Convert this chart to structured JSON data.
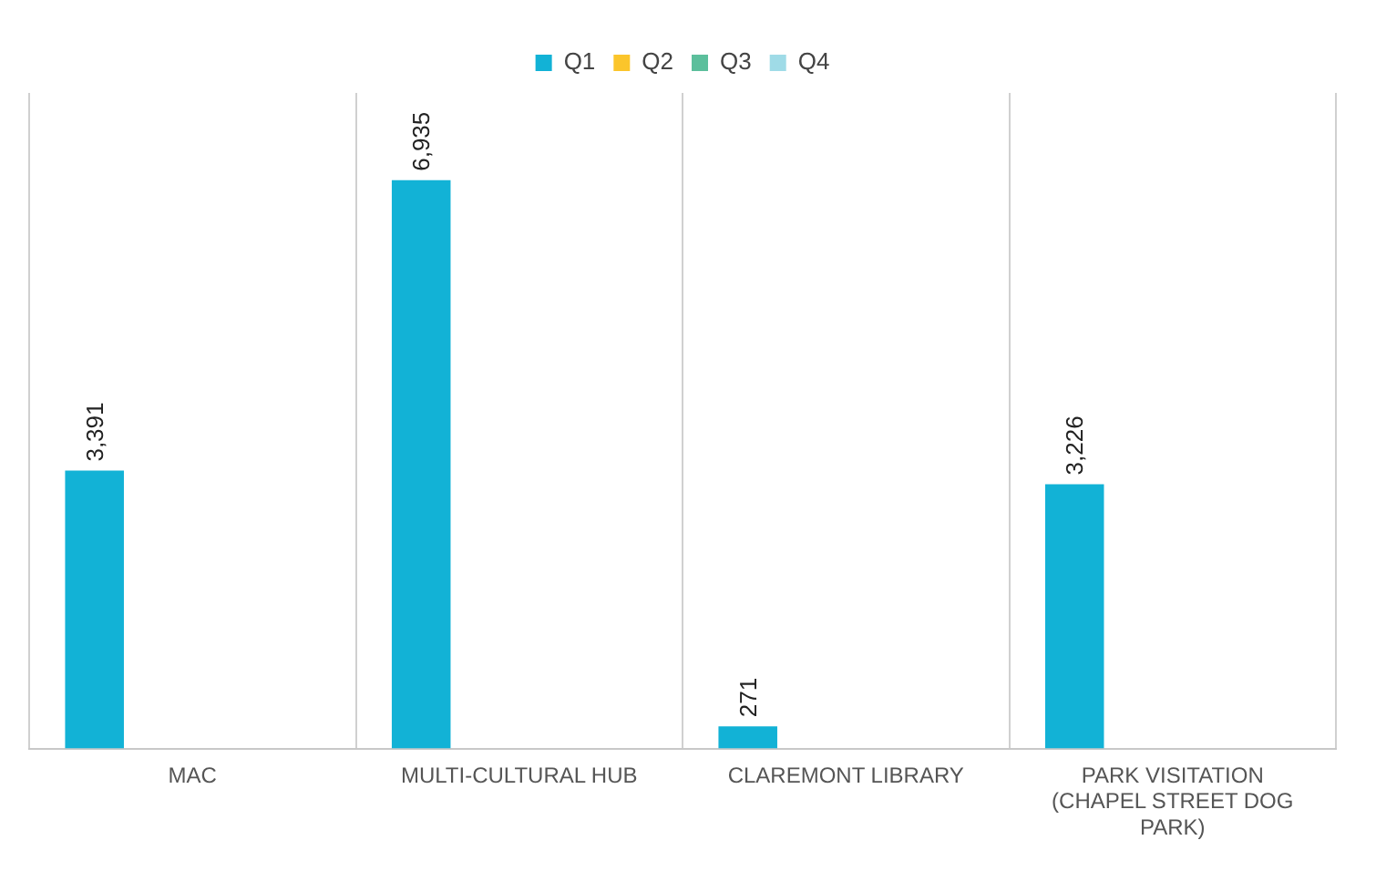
{
  "chart_data": {
    "type": "bar",
    "categories": [
      "MAC",
      "MULTI-CULTURAL HUB",
      "CLAREMONT LIBRARY",
      "PARK VISITATION (CHAPEL STREET DOG PARK)"
    ],
    "series": [
      {
        "name": "Q1",
        "color": "#12b2d6",
        "values": [
          3391,
          6935,
          271,
          3226
        ],
        "value_labels": [
          "3,391",
          "6,935",
          "271",
          "3,226"
        ]
      },
      {
        "name": "Q2",
        "color": "#fbc52b",
        "values": [
          null,
          null,
          null,
          null
        ]
      },
      {
        "name": "Q3",
        "color": "#5cbf9c",
        "values": [
          null,
          null,
          null,
          null
        ]
      },
      {
        "name": "Q4",
        "color": "#9fdbe7",
        "values": [
          null,
          null,
          null,
          null
        ]
      }
    ],
    "ylim": [
      0,
      8000
    ],
    "tick_labels": "x",
    "grid": "x",
    "legend": "top"
  }
}
